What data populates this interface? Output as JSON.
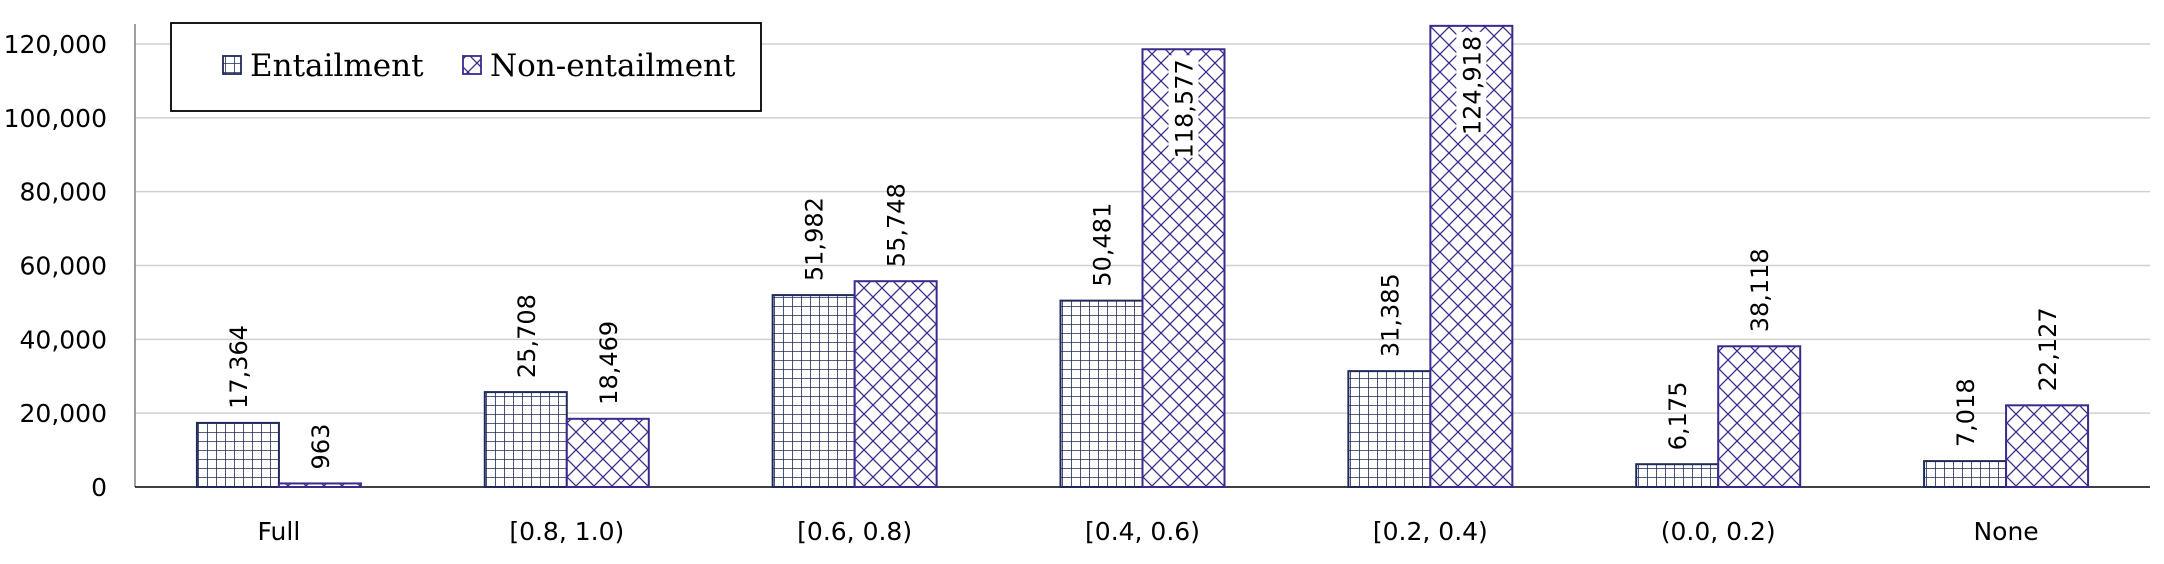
{
  "chart_data": {
    "type": "bar",
    "categories": [
      "Full",
      "[0.8, 1.0)",
      "[0.6, 0.8)",
      "[0.4, 0.6)",
      "[0.2, 0.4)",
      "(0.0, 0.2)",
      "None"
    ],
    "series": [
      {
        "name": "Entailment",
        "values": [
          17364,
          25708,
          51982,
          50481,
          31385,
          6175,
          7018
        ],
        "labels": [
          "17,364",
          "25,708",
          "51,982",
          "50,481",
          "31,385",
          "6,175",
          "7,018"
        ],
        "pattern": "grid",
        "color": "#1f2a5a"
      },
      {
        "name": "Non-entailment",
        "values": [
          963,
          18469,
          55748,
          118577,
          124918,
          38118,
          22127
        ],
        "labels": [
          "963",
          "18,469",
          "55,748",
          "118,577",
          "124,918",
          "38,118",
          "22,127"
        ],
        "pattern": "crosshatch",
        "color": "#3a2a8c"
      }
    ],
    "ylim": [
      0,
      120000
    ],
    "yticks": [
      0,
      20000,
      40000,
      60000,
      80000,
      100000,
      120000
    ],
    "ytick_labels": [
      "0",
      "20,000",
      "40,000",
      "60,000",
      "80,000",
      "100,000",
      "120,000"
    ],
    "grid": true,
    "legend_position": "top-left",
    "title": "",
    "xlabel": "",
    "ylabel": ""
  }
}
